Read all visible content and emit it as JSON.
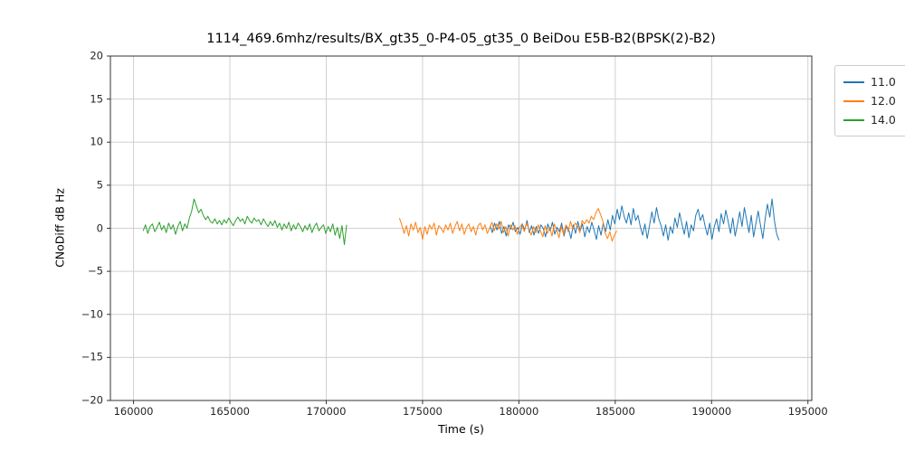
{
  "chart_data": {
    "type": "line",
    "title": "1114_469.6mhz/results/BX_gt35_0-P4-05_gt35_0 BeiDou E5B-B2(BPSK(2)-B2)",
    "axes": {
      "xlabel": "Time (s)",
      "ylabel": "CNoDiff dB Hz",
      "xmin": 158800,
      "xmax": 195200,
      "ymin": -20,
      "ymax": 20,
      "xticks": [
        160000,
        165000,
        170000,
        175000,
        180000,
        185000,
        190000,
        195000
      ],
      "xticklabels": [
        "160000",
        "165000",
        "170000",
        "175000",
        "180000",
        "185000",
        "190000",
        "195000"
      ],
      "yticks": [
        -20,
        -15,
        -10,
        -5,
        0,
        5,
        10,
        15,
        20
      ],
      "yticklabels": [
        "−20",
        "−15",
        "−10",
        "−5",
        "0",
        "5",
        "10",
        "15",
        "20"
      ],
      "grid": true,
      "legend_position": "outside-upper-right"
    },
    "series": [
      {
        "name": "11.0",
        "color": "#1f77b4",
        "x0": 178500,
        "dx": 120,
        "values": [
          0.3,
          -0.5,
          0.6,
          -0.2,
          0.8,
          -0.6,
          0.2,
          -0.9,
          0.4,
          -0.1,
          0.7,
          -0.4,
          0.1,
          -0.7,
          0.5,
          -0.2,
          0.9,
          -0.5,
          0.3,
          -0.8,
          0.2,
          -0.6,
          0.4,
          0.0,
          -1.0,
          0.5,
          -0.3,
          0.7,
          -0.7,
          0.1,
          -0.4,
          0.6,
          -0.9,
          0.3,
          -0.1,
          -1.2,
          0.4,
          -0.6,
          0.8,
          -0.3,
          0.5,
          -1.0,
          0.2,
          -0.5,
          0.7,
          -0.2,
          -1.3,
          0.3,
          -0.8,
          0.6,
          -0.4,
          1.0,
          -0.2,
          1.5,
          0.5,
          2.2,
          1.0,
          2.6,
          1.4,
          0.6,
          1.8,
          0.4,
          2.3,
          0.9,
          1.5,
          0.2,
          -0.8,
          0.5,
          -1.2,
          0.3,
          1.9,
          0.6,
          2.4,
          1.1,
          0.3,
          -0.9,
          0.4,
          -1.4,
          0.2,
          -0.6,
          1.2,
          0.1,
          1.8,
          0.5,
          -0.7,
          0.8,
          -1.1,
          0.4,
          -0.3,
          1.5,
          2.2,
          0.9,
          1.6,
          0.3,
          -0.8,
          0.6,
          -1.3,
          0.2,
          1.1,
          -0.4,
          1.7,
          0.5,
          2.1,
          0.8,
          -0.6,
          1.2,
          -0.9,
          0.4,
          1.9,
          0.2,
          2.4,
          1.0,
          -0.5,
          1.5,
          -1.0,
          0.6,
          2.0,
          0.3,
          -1.2,
          1.1,
          2.8,
          1.3,
          3.4,
          0.9,
          -0.7,
          -1.4
        ]
      },
      {
        "name": "12.0",
        "color": "#ff7f0e",
        "x0": 173800,
        "dx": 120,
        "values": [
          1.2,
          0.4,
          -0.6,
          0.3,
          -0.9,
          0.5,
          -0.2,
          0.7,
          -0.5,
          0.1,
          -1.3,
          0.2,
          -0.7,
          0.4,
          -0.1,
          0.6,
          -0.8,
          0.3,
          0.0,
          -0.5,
          0.4,
          -0.2,
          0.6,
          -0.6,
          0.2,
          0.8,
          -0.3,
          0.5,
          -0.7,
          0.1,
          0.5,
          -0.4,
          0.2,
          -0.8,
          0.3,
          0.6,
          -0.2,
          0.4,
          -0.6,
          0.0,
          0.7,
          -0.3,
          0.5,
          -0.1,
          0.8,
          -0.5,
          0.2,
          -0.9,
          0.4,
          -0.2,
          0.3,
          -0.7,
          0.1,
          0.5,
          -0.4,
          0.6,
          -0.1,
          -0.8,
          0.2,
          -0.5,
          0.4,
          -0.3,
          -1.0,
          0.3,
          -0.6,
          0.1,
          -0.9,
          0.5,
          -0.2,
          -1.1,
          0.2,
          -0.7,
          0.4,
          -0.4,
          0.8,
          -0.1,
          0.6,
          0.3,
          -0.5,
          0.9,
          0.5,
          1.0,
          0.6,
          1.4,
          1.0,
          1.8,
          2.3,
          1.6,
          0.8,
          -0.6,
          -1.2,
          -0.4,
          -1.5,
          -0.8,
          -0.3
        ]
      },
      {
        "name": "14.0",
        "color": "#2ca02c",
        "x0": 160500,
        "dx": 120,
        "values": [
          -0.3,
          0.4,
          -0.6,
          0.2,
          0.5,
          -0.4,
          0.1,
          0.7,
          -0.2,
          0.3,
          -0.5,
          0.6,
          -0.1,
          0.4,
          -0.7,
          0.2,
          0.8,
          -0.3,
          0.5,
          0.0,
          1.2,
          2.0,
          3.4,
          2.6,
          1.8,
          2.2,
          1.5,
          1.0,
          1.4,
          0.8,
          0.6,
          1.1,
          0.5,
          0.9,
          0.4,
          1.0,
          0.6,
          1.2,
          0.7,
          0.3,
          0.9,
          1.3,
          0.8,
          1.1,
          0.5,
          1.4,
          0.9,
          0.6,
          1.2,
          0.8,
          1.0,
          0.4,
          1.1,
          0.6,
          0.2,
          0.8,
          0.3,
          0.9,
          0.1,
          0.6,
          -0.2,
          0.5,
          0.0,
          0.7,
          -0.3,
          0.4,
          -0.1,
          0.6,
          0.2,
          -0.4,
          0.3,
          -0.2,
          0.5,
          -0.5,
          0.2,
          0.6,
          -0.3,
          0.1,
          0.4,
          -0.6,
          0.2,
          -0.4,
          0.5,
          -0.8,
          0.1,
          -1.2,
          0.3,
          -1.9,
          0.4
        ]
      }
    ]
  },
  "colors": {
    "grid": "#d0d0d0",
    "spine": "#333333",
    "tick": "#333333",
    "legend_border": "#cccccc"
  }
}
